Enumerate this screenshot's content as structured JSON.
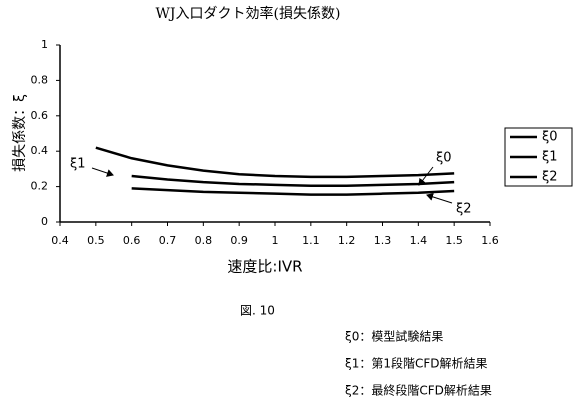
{
  "chart_data": {
    "type": "line",
    "title": "WJ入口ダクト効率(損失係数)",
    "x_label": "速度比:IVR",
    "y_label": "損失係数：ξ",
    "x": [
      0.5,
      0.6,
      0.7,
      0.8,
      0.9,
      1.0,
      1.1,
      1.2,
      1.3,
      1.4,
      1.5
    ],
    "series": [
      {
        "name": "ξ0",
        "color": "#000000",
        "values": [
          0.42,
          0.36,
          0.32,
          0.29,
          0.27,
          0.26,
          0.255,
          0.255,
          0.26,
          0.265,
          0.275
        ]
      },
      {
        "name": "ξ1",
        "color": "#000000",
        "values": [
          null,
          0.26,
          0.24,
          0.225,
          0.215,
          0.21,
          0.205,
          0.205,
          0.21,
          0.215,
          0.225
        ]
      },
      {
        "name": "ξ2",
        "color": "#000000",
        "values": [
          null,
          0.19,
          0.18,
          0.17,
          0.165,
          0.16,
          0.155,
          0.155,
          0.16,
          0.165,
          0.175
        ]
      }
    ],
    "xlim": [
      0.4,
      1.6
    ],
    "xticks": [
      0.4,
      0.5,
      0.6,
      0.7,
      0.8,
      0.9,
      1,
      1.1,
      1.2,
      1.3,
      1.4,
      1.5,
      1.6
    ],
    "ylim": [
      0,
      1
    ],
    "yticks": [
      0,
      0.2,
      0.4,
      0.6,
      0.8,
      1
    ],
    "grid": false,
    "legend": "right",
    "annotations": [
      "ξ0",
      "ξ1",
      "ξ2"
    ],
    "caption": "図. 10",
    "notes": [
      "ξ0：模型試験結果",
      "ξ1：第1段階CFD解析結果",
      "ξ2：最終段階CFD解析結果"
    ]
  }
}
